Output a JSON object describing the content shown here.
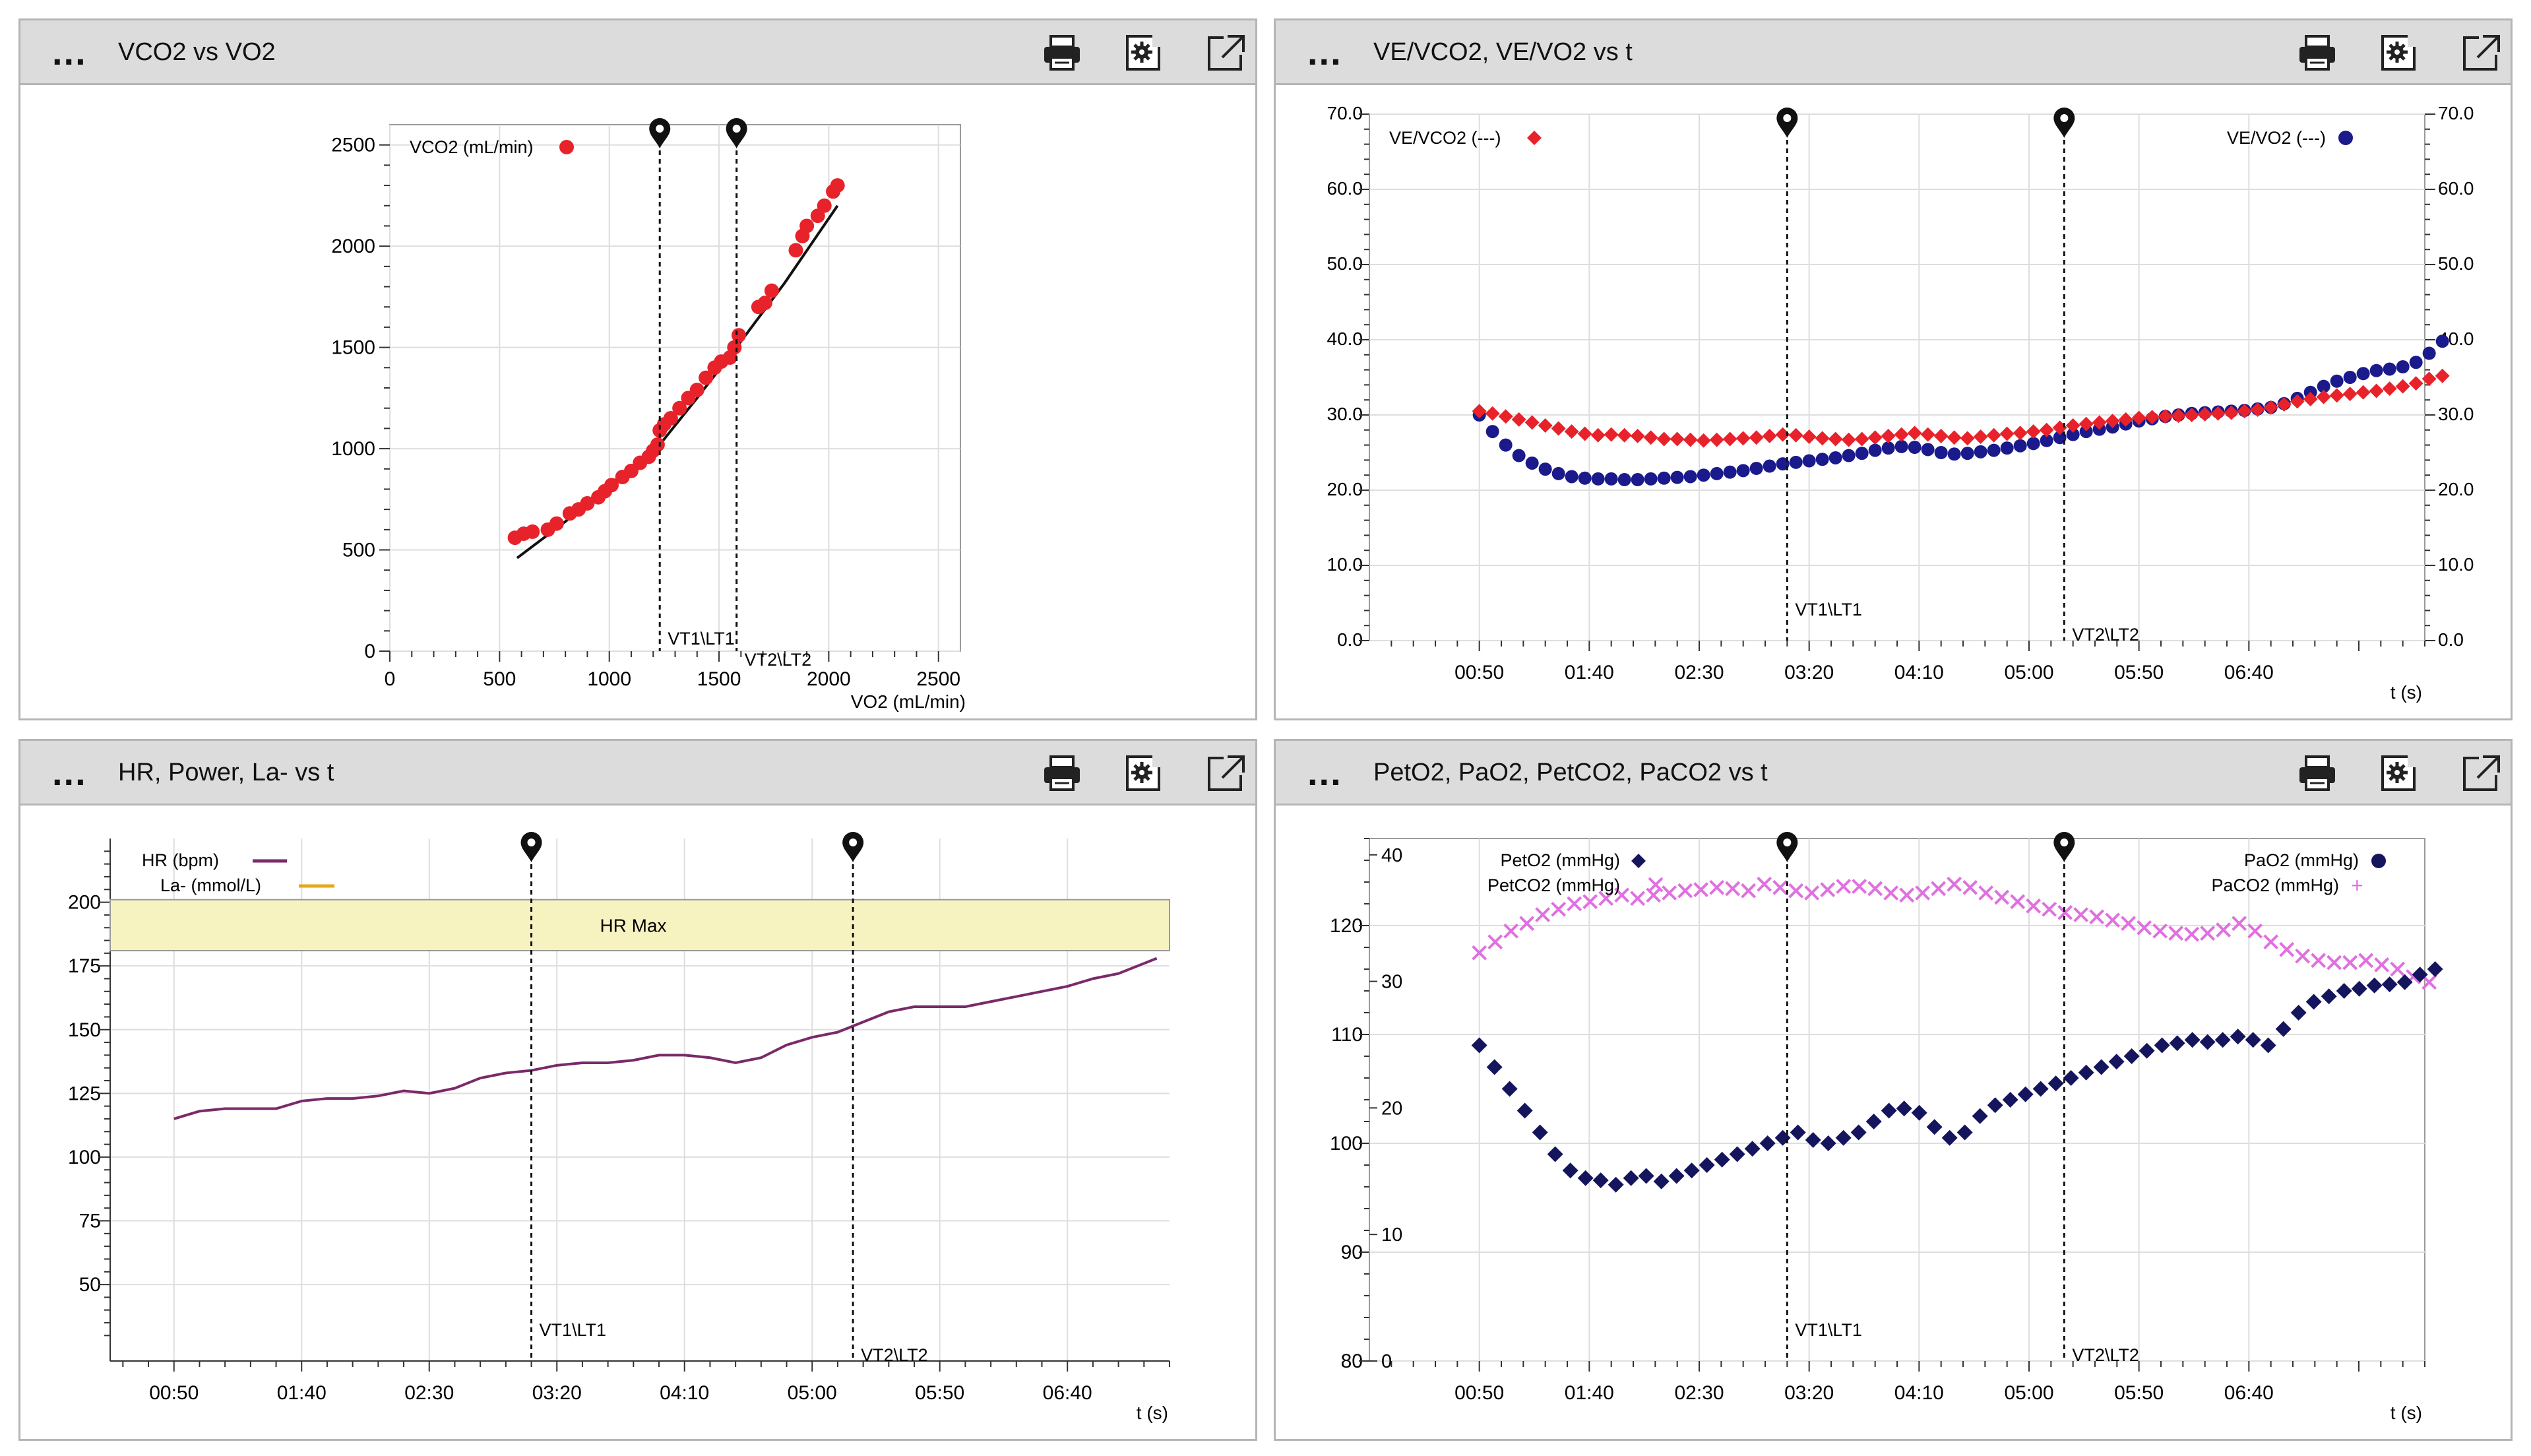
{
  "panels": [
    {
      "title": "VCO2 vs VO2"
    },
    {
      "title": "VE/VCO2, VE/VO2 vs t"
    },
    {
      "title": "HR, Power, La- vs t"
    },
    {
      "title": "PetO2, PaO2, PetCO2, PaCO2 vs t"
    }
  ],
  "header_menu": "...",
  "header_icons": [
    "printer-icon",
    "settings-icon",
    "external-link-icon"
  ],
  "markers": {
    "vt1": "VT1\\LT1",
    "vt2": "VT2\\LT2"
  },
  "time_ticks": [
    "00:50",
    "01:40",
    "02:30",
    "03:20",
    "04:10",
    "05:00",
    "05:50",
    "06:40"
  ],
  "time_unit": "t (s)",
  "colors": {
    "red": "#e8222a",
    "blue": "#1a1a8c",
    "navy": "#15155e",
    "magenta": "#e070e0",
    "purple": "#7a2a6a",
    "orange": "#e6a817",
    "hrmax": "#f7f3c0"
  },
  "chart_data": [
    {
      "type": "scatter",
      "title": "VCO2 vs VO2",
      "xlabel": "VO2 (mL/min)",
      "ylabel": "",
      "xlim": [
        0,
        2600
      ],
      "ylim": [
        0,
        2600
      ],
      "xticks": [
        0,
        500,
        1000,
        1500,
        2000,
        2500
      ],
      "yticks": [
        0,
        500,
        1000,
        1500,
        2000,
        2500
      ],
      "legend": "VCO2 (mL/min)",
      "markers": {
        "vt1": 1230,
        "vt2": 1580
      },
      "points": [
        [
          570,
          560
        ],
        [
          610,
          580
        ],
        [
          650,
          590
        ],
        [
          720,
          600
        ],
        [
          760,
          630
        ],
        [
          820,
          680
        ],
        [
          860,
          700
        ],
        [
          900,
          730
        ],
        [
          950,
          760
        ],
        [
          980,
          790
        ],
        [
          1010,
          820
        ],
        [
          1060,
          860
        ],
        [
          1100,
          890
        ],
        [
          1140,
          930
        ],
        [
          1180,
          960
        ],
        [
          1200,
          990
        ],
        [
          1220,
          1020
        ],
        [
          1230,
          1090
        ],
        [
          1250,
          1120
        ],
        [
          1280,
          1150
        ],
        [
          1320,
          1200
        ],
        [
          1360,
          1250
        ],
        [
          1400,
          1290
        ],
        [
          1440,
          1350
        ],
        [
          1480,
          1400
        ],
        [
          1510,
          1430
        ],
        [
          1550,
          1450
        ],
        [
          1570,
          1500
        ],
        [
          1590,
          1560
        ],
        [
          1680,
          1700
        ],
        [
          1710,
          1720
        ],
        [
          1740,
          1780
        ],
        [
          1850,
          1980
        ],
        [
          1880,
          2050
        ],
        [
          1900,
          2100
        ],
        [
          1950,
          2150
        ],
        [
          1980,
          2200
        ],
        [
          2020,
          2270
        ],
        [
          2040,
          2300
        ]
      ],
      "fit": [
        [
          580,
          460
        ],
        [
          800,
          640
        ],
        [
          1000,
          820
        ],
        [
          1230,
          1020
        ],
        [
          1400,
          1250
        ],
        [
          1600,
          1530
        ],
        [
          1800,
          1820
        ],
        [
          2040,
          2200
        ]
      ]
    },
    {
      "type": "line",
      "title": "VE/VCO2, VE/VO2 vs t",
      "xlabel": "t (s)",
      "xlim": [
        0,
        480
      ],
      "ylim": [
        0,
        70
      ],
      "yticks": [
        0,
        10,
        20,
        30,
        40,
        50,
        60,
        70
      ],
      "ytick_labels": [
        "0.0",
        "10.0",
        "20.0",
        "30.0",
        "40.0",
        "50.0",
        "60.0",
        "70.0"
      ],
      "markers": {
        "vt1": 190,
        "vt2": 316
      },
      "series": [
        {
          "name": "VE/VCO2 (---)",
          "marker": "diamond",
          "values": [
            30.5,
            30.2,
            29.8,
            29.4,
            29.0,
            28.6,
            28.2,
            27.8,
            27.5,
            27.3,
            27.4,
            27.3,
            27.2,
            27.0,
            26.8,
            26.8,
            26.7,
            26.6,
            26.7,
            26.8,
            26.9,
            27.0,
            27.2,
            27.4,
            27.3,
            27.1,
            26.9,
            26.8,
            26.7,
            26.8,
            27.0,
            27.2,
            27.4,
            27.6,
            27.4,
            27.2,
            27.0,
            26.9,
            27.1,
            27.3,
            27.5,
            27.6,
            27.8,
            28.0,
            28.3,
            28.6,
            28.8,
            29.0,
            29.2,
            29.4,
            29.6,
            29.7,
            29.8,
            29.9,
            30.0,
            30.1,
            30.2,
            30.3,
            30.5,
            30.7,
            31.0,
            31.4,
            31.8,
            32.1,
            32.4,
            32.6,
            32.8,
            33.0,
            33.2,
            33.5,
            33.8,
            34.2,
            34.8,
            35.2
          ]
        },
        {
          "name": "VE/VO2 (---)",
          "marker": "circle",
          "axis": "right",
          "values": [
            30.0,
            27.8,
            26.0,
            24.6,
            23.6,
            22.8,
            22.2,
            21.8,
            21.6,
            21.5,
            21.5,
            21.4,
            21.4,
            21.5,
            21.6,
            21.7,
            21.8,
            22.0,
            22.2,
            22.4,
            22.6,
            22.9,
            23.2,
            23.5,
            23.7,
            23.9,
            24.1,
            24.3,
            24.6,
            24.9,
            25.3,
            25.6,
            25.8,
            25.7,
            25.4,
            25.0,
            24.8,
            24.9,
            25.1,
            25.3,
            25.6,
            25.9,
            26.2,
            26.6,
            27.0,
            27.4,
            27.8,
            28.1,
            28.4,
            28.8,
            29.2,
            29.5,
            29.8,
            30.0,
            30.2,
            30.3,
            30.4,
            30.5,
            30.6,
            30.8,
            31.0,
            31.5,
            32.2,
            33.0,
            33.8,
            34.5,
            35.0,
            35.5,
            35.9,
            36.1,
            36.4,
            37.0,
            38.2,
            39.8
          ]
        }
      ]
    },
    {
      "type": "line",
      "title": "HR, Power, La- vs t",
      "xlabel": "t (s)",
      "xlim": [
        25,
        440
      ],
      "ylim": [
        20,
        225
      ],
      "yticks": [
        50,
        75,
        100,
        125,
        150,
        175,
        200
      ],
      "band": {
        "label": "HR Max",
        "from": 181,
        "to": 201
      },
      "markers": {
        "vt1": 190,
        "vt2": 316
      },
      "legend": [
        "HR (bpm)",
        "La- (mmol/L)"
      ],
      "series": [
        {
          "name": "HR (bpm)",
          "x": [
            50,
            60,
            70,
            80,
            90,
            100,
            110,
            120,
            130,
            140,
            150,
            160,
            170,
            180,
            190,
            200,
            210,
            220,
            230,
            240,
            250,
            260,
            270,
            280,
            290,
            300,
            310,
            320,
            330,
            340,
            350,
            360,
            370,
            380,
            390,
            400,
            410,
            420,
            430,
            435
          ],
          "values": [
            115,
            118,
            119,
            119,
            119,
            122,
            123,
            123,
            124,
            126,
            125,
            127,
            131,
            133,
            134,
            136,
            137,
            137,
            138,
            140,
            140,
            139,
            137,
            139,
            144,
            147,
            149,
            153,
            157,
            159,
            159,
            159,
            161,
            163,
            165,
            167,
            170,
            172,
            176,
            178
          ]
        }
      ]
    },
    {
      "type": "scatter",
      "title": "PetO2, PaO2, PetCO2, PaCO2 vs t",
      "xlabel": "t (s)",
      "xlim": [
        0,
        480
      ],
      "ylim": [
        80,
        128
      ],
      "yticks": [
        80,
        90,
        100,
        110,
        120
      ],
      "right_ticks": [
        0,
        10,
        20,
        30,
        40
      ],
      "markers": {
        "vt1": 190,
        "vt2": 316
      },
      "legend_left": [
        "PetO2 (mmHg)",
        "PetCO2 (mmHg)"
      ],
      "legend_right": [
        "PaO2 (mmHg)",
        "PaCO2 (mmHg)"
      ],
      "series": [
        {
          "name": "PetO2 (mmHg)",
          "marker": "diamond",
          "values": [
            109,
            107,
            105,
            103,
            101,
            99,
            97.5,
            96.8,
            96.6,
            96.2,
            96.8,
            97.0,
            96.5,
            97.0,
            97.5,
            98.0,
            98.5,
            99.0,
            99.5,
            100.0,
            100.5,
            101.0,
            100.3,
            100.0,
            100.5,
            101.0,
            102.0,
            103.0,
            103.2,
            102.8,
            101.5,
            100.5,
            101.0,
            102.5,
            103.5,
            104.0,
            104.5,
            105.0,
            105.5,
            106.0,
            106.5,
            107.0,
            107.5,
            108.0,
            108.5,
            109.0,
            109.2,
            109.5,
            109.3,
            109.5,
            109.8,
            109.5,
            109.0,
            110.5,
            112.0,
            113.0,
            113.5,
            114.0,
            114.2,
            114.5,
            114.6,
            114.8,
            115.5,
            116.0
          ]
        },
        {
          "name": "PetCO2 (mmHg)",
          "marker": "x",
          "values": [
            117.5,
            118.5,
            119.5,
            120.2,
            121.0,
            121.5,
            122.0,
            122.2,
            122.5,
            122.8,
            122.5,
            122.8,
            123.0,
            123.2,
            123.3,
            123.5,
            123.4,
            123.2,
            123.8,
            123.5,
            123.2,
            123.0,
            123.3,
            123.6,
            123.6,
            123.4,
            123.0,
            122.8,
            123.0,
            123.4,
            123.8,
            123.5,
            123.0,
            122.6,
            122.2,
            121.8,
            121.5,
            121.2,
            121.0,
            120.8,
            120.5,
            120.2,
            119.8,
            119.5,
            119.3,
            119.2,
            119.3,
            119.6,
            120.2,
            119.5,
            118.5,
            117.8,
            117.2,
            116.8,
            116.6,
            116.6,
            116.8,
            116.4,
            116.0,
            115.3,
            114.8
          ]
        }
      ]
    }
  ]
}
